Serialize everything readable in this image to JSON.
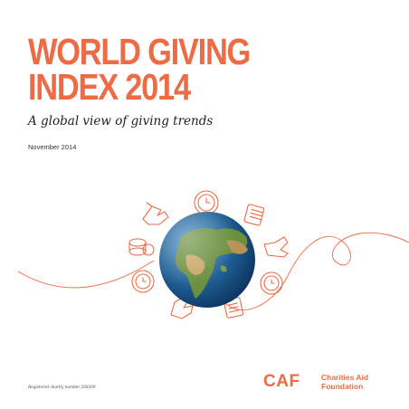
{
  "cover": {
    "title_line1": "WORLD GIVING",
    "title_line2": "INDEX 2014",
    "subtitle": "A global view of giving trends",
    "date": "November 2014",
    "registered": "Registered charity number 268369"
  },
  "logo": {
    "mark": "CAF",
    "name_line1": "Charities Aid",
    "name_line2": "Foundation"
  },
  "illustration": {
    "center": "earth-globe",
    "icons": [
      "clock-icon",
      "coins-icon",
      "donation-hand-icon",
      "giving-hand-icon",
      "money-stack-icon"
    ]
  },
  "colors": {
    "accent": "#ed6b45",
    "text": "#222222",
    "ocean": "#1c5a8e",
    "land": "#6a8f3e"
  }
}
